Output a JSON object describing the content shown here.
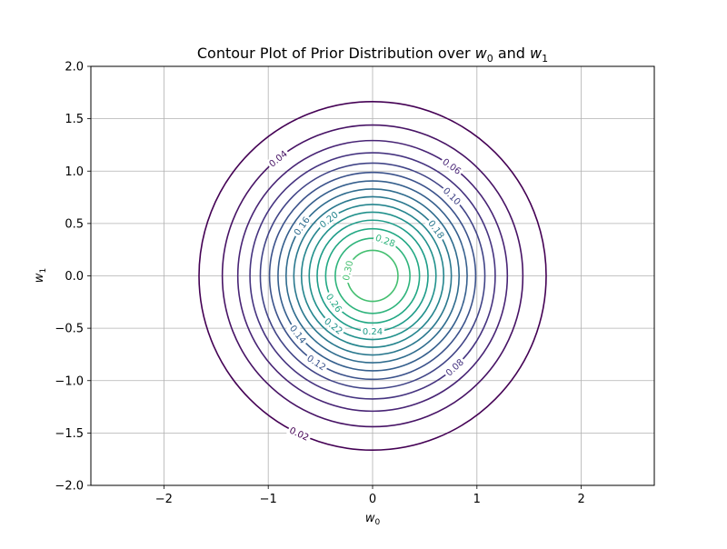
{
  "chart_data": {
    "type": "contour",
    "title_main": "Contour Plot of Prior Distribution over ",
    "title_var0": "w",
    "title_sub0": "0",
    "title_and": " and ",
    "title_var1": "w",
    "title_sub1": "1",
    "xlabel_var": "w",
    "xlabel_sub": "0",
    "ylabel_var": "w",
    "ylabel_sub": "1",
    "xlim": [
      -2.7,
      2.7
    ],
    "ylim": [
      -2.0,
      2.0
    ],
    "x_ticks": [
      -2,
      -1,
      0,
      1,
      2
    ],
    "x_tick_labels": [
      "−2",
      "−1",
      "0",
      "1",
      "2"
    ],
    "y_ticks": [
      -2.0,
      -1.5,
      -1.0,
      -0.5,
      0.0,
      0.5,
      1.0,
      1.5,
      2.0
    ],
    "y_tick_labels": [
      "−2.0",
      "−1.5",
      "−1.0",
      "−0.5",
      "0.0",
      "0.5",
      "1.0",
      "1.5",
      "2.0"
    ],
    "grid": true,
    "colormap": "viridis",
    "contour_levels": [
      0.02,
      0.04,
      0.06,
      0.08,
      0.1,
      0.12,
      0.14,
      0.16,
      0.18,
      0.2,
      0.22,
      0.24,
      0.26,
      0.28,
      0.3
    ],
    "contour_colors": [
      "#440154",
      "#471365",
      "#482475",
      "#463480",
      "#414487",
      "#3b528b",
      "#355f8d",
      "#2f6c8e",
      "#2a788e",
      "#25858e",
      "#21918c",
      "#1e9c89",
      "#22a884",
      "#2fb47c",
      "#44bf70",
      "#5ec962",
      "#7ad151",
      "#9bd93c",
      "#bddf26",
      "#dfe318"
    ],
    "contour_labels": [
      {
        "text": "0.02",
        "level": 0.02,
        "angle_deg": -115
      },
      {
        "text": "0.04",
        "level": 0.04,
        "angle_deg": 129
      },
      {
        "text": "0.06",
        "level": 0.06,
        "angle_deg": 54
      },
      {
        "text": "0.08",
        "level": 0.08,
        "angle_deg": -48
      },
      {
        "text": "0.10",
        "level": 0.1,
        "angle_deg": 45
      },
      {
        "text": "0.12",
        "level": 0.12,
        "angle_deg": -123
      },
      {
        "text": "0.14",
        "level": 0.14,
        "angle_deg": -142
      },
      {
        "text": "0.16",
        "level": 0.16,
        "angle_deg": 145
      },
      {
        "text": "0.18",
        "level": 0.18,
        "angle_deg": 36
      },
      {
        "text": "0.20",
        "level": 0.2,
        "angle_deg": 128
      },
      {
        "text": "0.22",
        "level": 0.22,
        "angle_deg": -128
      },
      {
        "text": "0.24",
        "level": 0.24,
        "angle_deg": -90
      },
      {
        "text": "0.26",
        "level": 0.26,
        "angle_deg": -145
      },
      {
        "text": "0.28",
        "level": 0.28,
        "angle_deg": 70
      },
      {
        "text": "0.30",
        "level": 0.3,
        "angle_deg": 168
      }
    ]
  }
}
